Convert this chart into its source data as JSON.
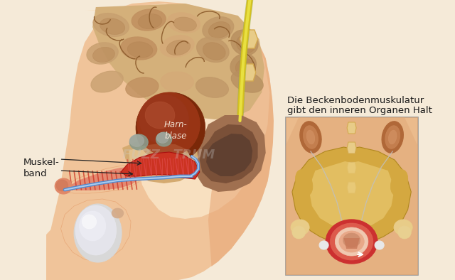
{
  "bg_color": "#f5ead8",
  "label_harnblase": "Harn-\nblase",
  "label_muskelband": "Muskel-\nband",
  "caption_line1": "Die Beckenbodenmuskulatur",
  "caption_line2": "gibt den inneren Organen Halt",
  "skin_light": "#f0c49a",
  "skin_mid": "#e8a878",
  "skin_pale": "#f7dfc0",
  "intestine_tan": "#c8a06a",
  "intestine_dark": "#b08050",
  "intestine_outline": "#906030",
  "bladder_dark": "#7a2808",
  "bladder_mid": "#a03818",
  "bladder_light": "#c06040",
  "prostate_tan": "#d4aa70",
  "prostate_light": "#e8cc98",
  "gray_gland": "#8a9a8a",
  "gray_gland2": "#aab0aa",
  "muscle_red": "#cc3322",
  "muscle_red2": "#e05040",
  "rectum_brown": "#9a6848",
  "rectum_dark": "#7a4828",
  "rectum_gray": "#706060",
  "blue_tube": "#5588cc",
  "blue_tube2": "#aaccee",
  "nerve_yellow": "#d4c020",
  "nerve_green": "#88aa44",
  "bone_yellow": "#d4aa50",
  "bone_light": "#e8cc88",
  "skin_inset": "#e8a870",
  "kidney_brown": "#b06838",
  "kidney_light": "#cc8858",
  "pelvis_yellow": "#d4a840",
  "pelvis_light": "#e8c870",
  "pf_red": "#cc3030",
  "pf_dark": "#aa1010",
  "pf_inner": "#e06050",
  "pf_cream": "#f0c8b0",
  "white_nodule": "#e8e8e8",
  "text_dark": "#1a1a1a",
  "arrow_color": "#222222",
  "inset_border": "#999999",
  "inset_bg": "#f0d8b8",
  "leg_color": "#e0a878",
  "torso_light": "#f8e0c0"
}
